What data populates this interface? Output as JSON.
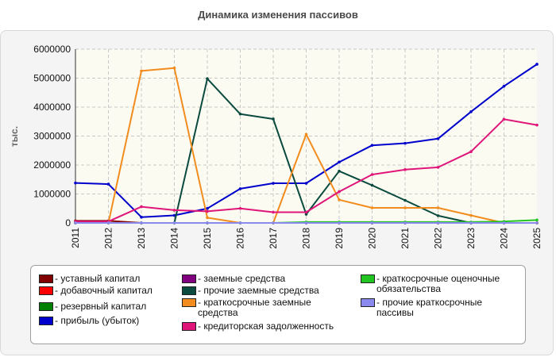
{
  "title": "Динамика изменения пассивов",
  "chart_data": {
    "type": "line",
    "title": "Динамика изменения пассивов",
    "ylabel": "тыс.",
    "xlabel": "",
    "x": [
      "2011",
      "2012",
      "2013",
      "2014",
      "2015",
      "2016",
      "2017",
      "2018",
      "2019",
      "2020",
      "2021",
      "2022",
      "2023",
      "2024",
      "2025"
    ],
    "ylim": [
      0,
      6000000
    ],
    "yticks": [
      0,
      1000000,
      2000000,
      3000000,
      4000000,
      5000000,
      6000000
    ],
    "ytick_labels": [
      "0",
      "1000000",
      "2000000",
      "3000000",
      "4000000",
      "5000000",
      "6000000"
    ],
    "grid": true,
    "legend_position": "bottom",
    "series": [
      {
        "name": "уставный капитал",
        "color": "#800000",
        "values": [
          70000,
          70000,
          0,
          0,
          0,
          0,
          0,
          0,
          0,
          0,
          0,
          0,
          0,
          0,
          0
        ]
      },
      {
        "name": "добавочный капитал",
        "color": "#ff0000",
        "values": [
          0,
          0,
          0,
          0,
          0,
          0,
          0,
          0,
          0,
          0,
          0,
          0,
          0,
          0,
          0
        ]
      },
      {
        "name": "резервный капитал",
        "color": "#008000",
        "values": [
          0,
          0,
          0,
          0,
          0,
          0,
          0,
          0,
          0,
          0,
          0,
          0,
          0,
          0,
          0
        ]
      },
      {
        "name": "прибыль (убыток)",
        "color": "#0000cc",
        "values": [
          1380000,
          1340000,
          200000,
          260000,
          500000,
          1180000,
          1370000,
          1370000,
          2100000,
          2680000,
          2750000,
          2910000,
          3840000,
          4720000,
          5480000
        ]
      },
      {
        "name": "заемные средства",
        "color": "#800080",
        "values": [
          0,
          0,
          0,
          0,
          0,
          0,
          0,
          0,
          0,
          0,
          0,
          0,
          0,
          0,
          0
        ]
      },
      {
        "name": "прочие заемные средства",
        "color": "#0b4a3e",
        "values": [
          0,
          0,
          0,
          0,
          4980000,
          3760000,
          3590000,
          300000,
          1790000,
          1300000,
          780000,
          250000,
          0,
          0,
          0
        ]
      },
      {
        "name": "краткосрочные заемные средства",
        "color": "#f28c1e",
        "values": [
          0,
          0,
          5250000,
          5350000,
          180000,
          0,
          0,
          3060000,
          800000,
          520000,
          520000,
          520000,
          260000,
          0,
          0
        ]
      },
      {
        "name": "кредиторская задолженность",
        "color": "#e0157a",
        "values": [
          50000,
          50000,
          560000,
          440000,
          400000,
          500000,
          370000,
          370000,
          1080000,
          1670000,
          1840000,
          1920000,
          2460000,
          3580000,
          3380000
        ]
      },
      {
        "name": "краткосрочные оценочные обязательства",
        "color": "#22c422",
        "values": [
          0,
          0,
          0,
          0,
          0,
          0,
          0,
          30000,
          30000,
          30000,
          30000,
          30000,
          30000,
          50000,
          100000
        ]
      },
      {
        "name": "прочие краткосрочные пассивы",
        "color": "#8a8aee",
        "values": [
          0,
          0,
          0,
          0,
          0,
          0,
          0,
          0,
          0,
          0,
          0,
          0,
          0,
          0,
          0
        ]
      }
    ]
  }
}
